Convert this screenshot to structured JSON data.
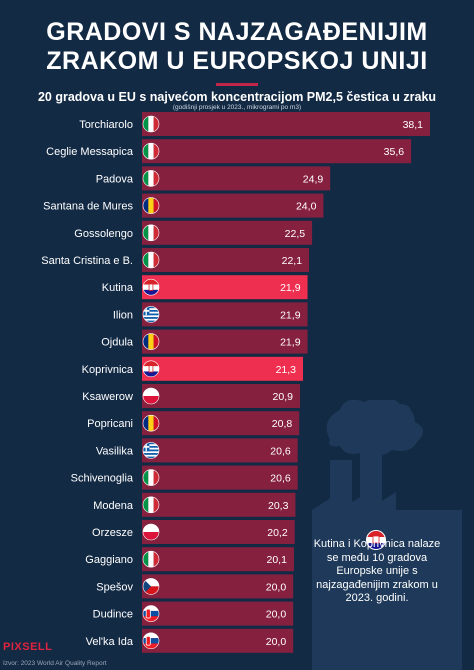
{
  "title_lines": [
    "GRADOVI S NAJZAGAĐENIJIM",
    "ZRAKOM U EUROPSKOJ UNIJI"
  ],
  "subtitle": "20 gradova u EU s najvećom koncentracijom PM2,5 čestica u zraku",
  "note": "(godišnji prosjek u 2023., mikrogrami po m3)",
  "colors": {
    "background": "#132a45",
    "bar": "#86203f",
    "bar_highlight": "#ef2f4f",
    "accent": "#c0254a"
  },
  "chart_data": {
    "type": "bar",
    "orientation": "horizontal",
    "title": "GRADOVI S NAJZAGAĐENIJIM ZRAKOM U EUROPSKOJ UNIJI",
    "subtitle": "20 gradova u EU s najvećom koncentracijom PM2,5 čestica u zraku",
    "xlabel": "",
    "ylabel": "",
    "categories": [
      "Torchiarolo",
      "Ceglie Messapica",
      "Padova",
      "Santana de Mures",
      "Gossolengo",
      "Santa Cristina e B.",
      "Kutina",
      "Ilion",
      "Ojdula",
      "Koprivnica",
      "Ksawerow",
      "Popricani",
      "Vasilika",
      "Schivenoglia",
      "Modena",
      "Orzesze",
      "Gaggiano",
      "Spešov",
      "Dudince",
      "Vel'ka Ida"
    ],
    "values": [
      38.1,
      35.6,
      24.9,
      24.0,
      22.5,
      22.1,
      21.9,
      21.9,
      21.9,
      21.3,
      20.9,
      20.8,
      20.6,
      20.6,
      20.3,
      20.2,
      20.1,
      20.0,
      20.0,
      20.0
    ],
    "value_labels": [
      "38,1",
      "35,6",
      "24,9",
      "24,0",
      "22,5",
      "22,1",
      "21,9",
      "21,9",
      "21,9",
      "21,3",
      "20,9",
      "20,8",
      "20,6",
      "20,6",
      "20,3",
      "20,2",
      "20,1",
      "20,0",
      "20,0",
      "20,0"
    ],
    "flags": [
      "italy",
      "italy",
      "italy",
      "romania",
      "italy",
      "italy",
      "croatia",
      "greece",
      "romania",
      "croatia",
      "poland",
      "romania",
      "greece",
      "italy",
      "italy",
      "poland",
      "italy",
      "czechia",
      "slovakia",
      "slovakia"
    ],
    "highlighted": [
      "Kutina",
      "Koprivnica"
    ],
    "xlim": [
      0,
      38.1
    ],
    "grid": false,
    "legend": "none"
  },
  "callout": {
    "flag": "croatia",
    "text": "Kutina i Koprivnica nalaze se među 10 gradova Europske unije s najzagađenijim zrakom u 2023. godini."
  },
  "brand": "PIXSELL",
  "source": "Izvor: 2023 World Air Quality Report"
}
